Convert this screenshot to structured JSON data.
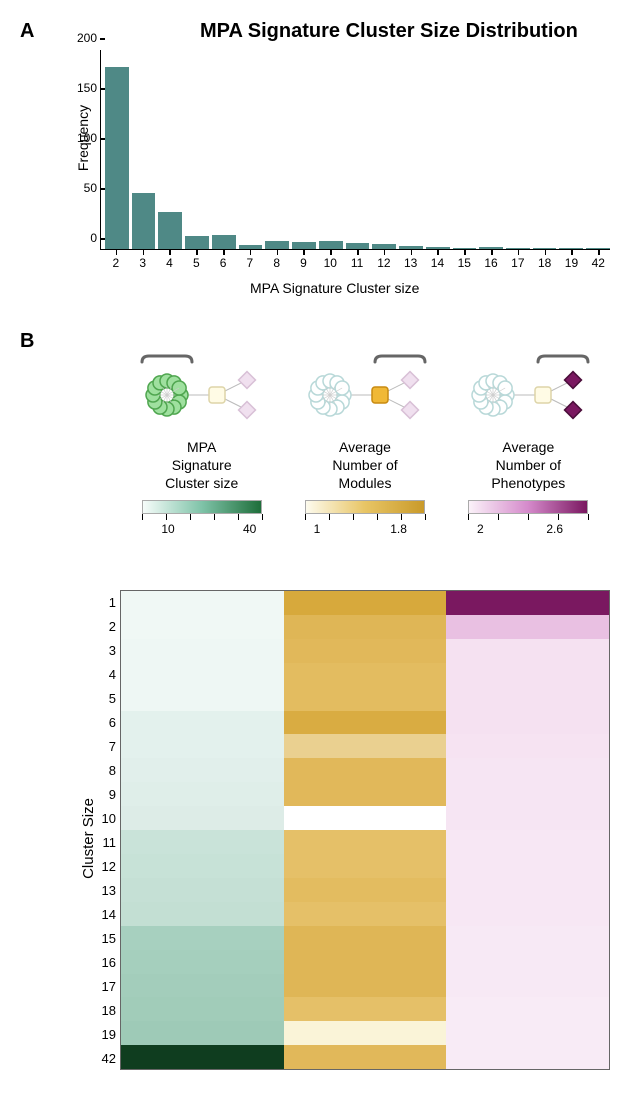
{
  "panelA": {
    "label": "A",
    "title": "MPA Signature Cluster Size Distribution",
    "ylabel": "Frequency",
    "xlabel": "MPA Signature Cluster size",
    "ylim_max": 200,
    "yticks": [
      0,
      50,
      100,
      150,
      200
    ],
    "bar_color": "#4f8986",
    "categories": [
      "2",
      "3",
      "4",
      "5",
      "6",
      "7",
      "8",
      "9",
      "10",
      "11",
      "12",
      "13",
      "14",
      "15",
      "16",
      "17",
      "18",
      "19",
      "42"
    ],
    "values": [
      183,
      56,
      37,
      13,
      14,
      4,
      8,
      7,
      8,
      6,
      5,
      3,
      2,
      1,
      2,
      1,
      1,
      1,
      1
    ]
  },
  "panelB": {
    "label": "B",
    "cluster_size_label": "Cluster Size",
    "row_labels": [
      "1",
      "2",
      "3",
      "4",
      "5",
      "6",
      "7",
      "8",
      "9",
      "10",
      "11",
      "12",
      "13",
      "14",
      "15",
      "16",
      "17",
      "18",
      "19",
      "42"
    ],
    "columns": [
      {
        "title": "MPA\nSignature\nCluster size",
        "gradient_css": "linear-gradient(to right, #f6fcfa, #7fc3a8, #1e6e3a)",
        "tick_labels": [
          "10",
          "40"
        ],
        "tick_positions_pct": [
          22,
          90
        ],
        "n_ticks": 6,
        "icon_type": "cluster",
        "cell_colors": [
          "#f0f8f5",
          "#f0f8f5",
          "#eef7f4",
          "#eef7f4",
          "#eef7f4",
          "#e3f1ed",
          "#e3f1ed",
          "#e1efeb",
          "#dfeee9",
          "#ddece7",
          "#c9e3d9",
          "#c7e2d7",
          "#c5e0d5",
          "#c3dfd3",
          "#a7d0bf",
          "#a5cfbd",
          "#a3cdbb",
          "#a1ccb9",
          "#9ecab7",
          "#0f3d1f"
        ]
      },
      {
        "title": "Average\nNumber of\nModules",
        "gradient_css": "linear-gradient(to right, #fdfbee, #e8c565, #c99a2a)",
        "tick_labels": [
          "1",
          "1.8"
        ],
        "tick_positions_pct": [
          10,
          78
        ],
        "n_ticks": 6,
        "icon_type": "module",
        "cell_colors": [
          "#d7a93c",
          "#dfb656",
          "#e1b85a",
          "#e3bc60",
          "#e3bc60",
          "#d9ac42",
          "#ead090",
          "#e1b85a",
          "#e1b85a",
          "#efda a8",
          "#e5c068",
          "#e5c068",
          "#e3bc60",
          "#e5c068",
          "#dfb656",
          "#dfb656",
          "#dfb656",
          "#e5c068",
          "#faf4d8",
          "#e1b85a"
        ]
      },
      {
        "title": "Average\nNumber of\nPhenotypes",
        "gradient_css": "linear-gradient(to right, #fbf2f9, #d58acb, #7a1860)",
        "tick_labels": [
          "2",
          "2.6"
        ],
        "tick_positions_pct": [
          10,
          72
        ],
        "n_ticks": 5,
        "icon_type": "phenotype",
        "cell_colors": [
          "#7a1860",
          "#e9c0e2",
          "#f5e1f1",
          "#f5e1f1",
          "#f5e1f1",
          "#f5e1f1",
          "#f6e3f2",
          "#f6e5f3",
          "#f6e5f3",
          "#f6e5f3",
          "#f7e7f4",
          "#f7e7f4",
          "#f7e7f4",
          "#f7e7f4",
          "#f7e9f5",
          "#f7e9f5",
          "#f7e9f5",
          "#f8ebf6",
          "#f8ebf6",
          "#f8ebf6"
        ]
      }
    ]
  }
}
